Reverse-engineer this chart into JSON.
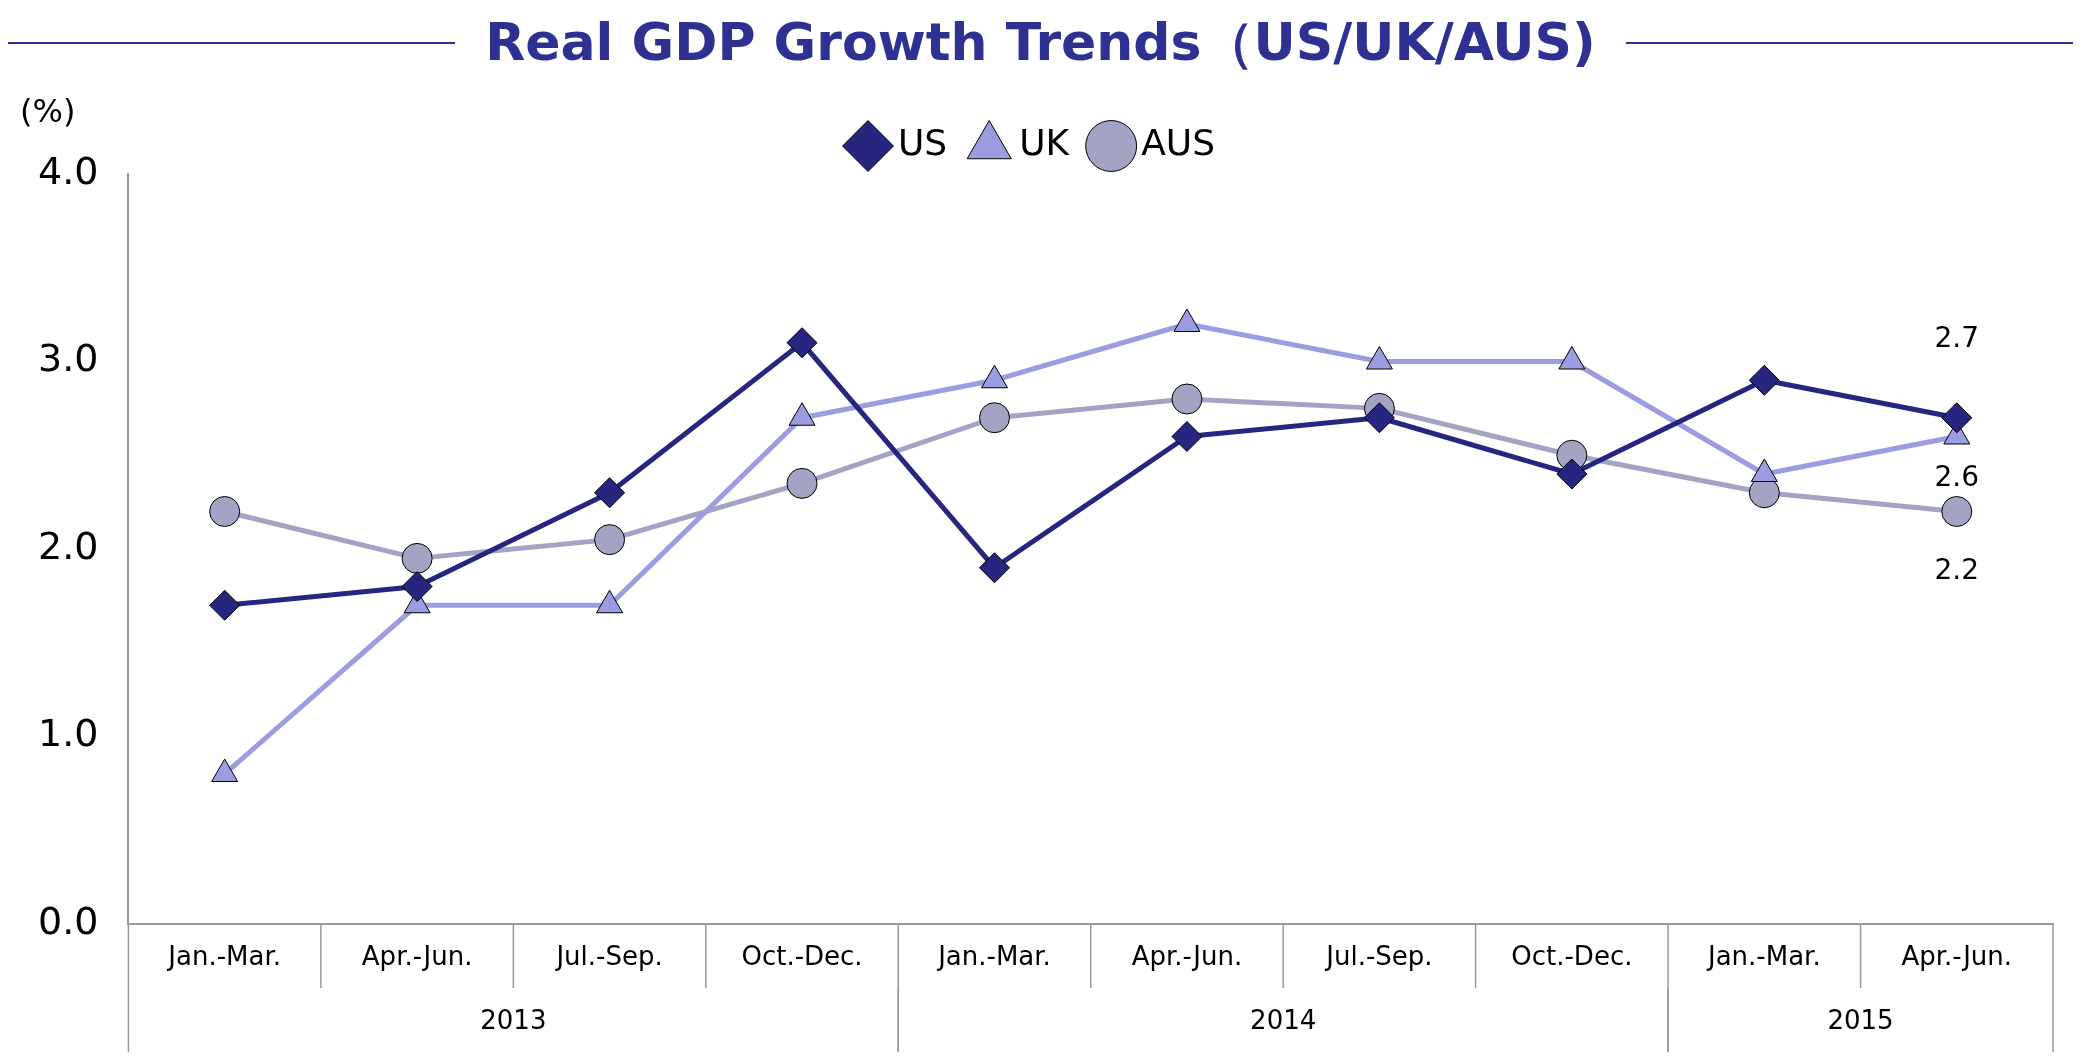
{
  "chart_data": {
    "type": "line",
    "title": "Real GDP Growth Trends（US/UK/AUS)",
    "ylabel": "(%)",
    "categories": [
      "Jan.-Mar.",
      "Apr.-Jun.",
      "Jul.-Sep.",
      "Oct.-Dec.",
      "Jan.-Mar.",
      "Apr.-Jun.",
      "Jul.-Sep.",
      "Oct.-Dec.",
      "Jan.-Mar.",
      "Apr.-Jun."
    ],
    "annotations": [
      "2013",
      "2014",
      "2015"
    ],
    "series": [
      {
        "name": "US",
        "color": "#262680",
        "marker": "diamond",
        "values": [
          1.7,
          1.8,
          2.3,
          3.1,
          1.9,
          2.6,
          2.7,
          2.4,
          2.9,
          2.7
        ],
        "value_labels": [
          null,
          null,
          null,
          null,
          null,
          null,
          null,
          null,
          null,
          "2.7"
        ]
      },
      {
        "name": "UK",
        "color": "#9c9ce0",
        "marker": "triangle",
        "values": [
          0.8,
          1.7,
          1.7,
          2.7,
          2.9,
          3.2,
          3.0,
          3.0,
          2.4,
          2.6
        ],
        "value_labels": [
          null,
          null,
          null,
          null,
          null,
          null,
          null,
          null,
          null,
          "2.6"
        ]
      },
      {
        "name": "AUS",
        "color": "#a3a3c4",
        "marker": "circle",
        "values": [
          2.2,
          1.95,
          2.05,
          2.35,
          2.7,
          2.8,
          2.75,
          2.5,
          2.3,
          2.2
        ],
        "value_labels": [
          null,
          null,
          null,
          null,
          null,
          null,
          null,
          null,
          null,
          "2.2"
        ]
      }
    ],
    "ylim": [
      0,
      4
    ],
    "yticks": [
      {
        "value": 0,
        "label": "0.0"
      },
      {
        "value": 1,
        "label": "1.0"
      },
      {
        "value": 2,
        "label": "2.0"
      },
      {
        "value": 3,
        "label": "3.0"
      },
      {
        "value": 4,
        "label": "4.0"
      }
    ],
    "grid": false,
    "legend": "top"
  }
}
